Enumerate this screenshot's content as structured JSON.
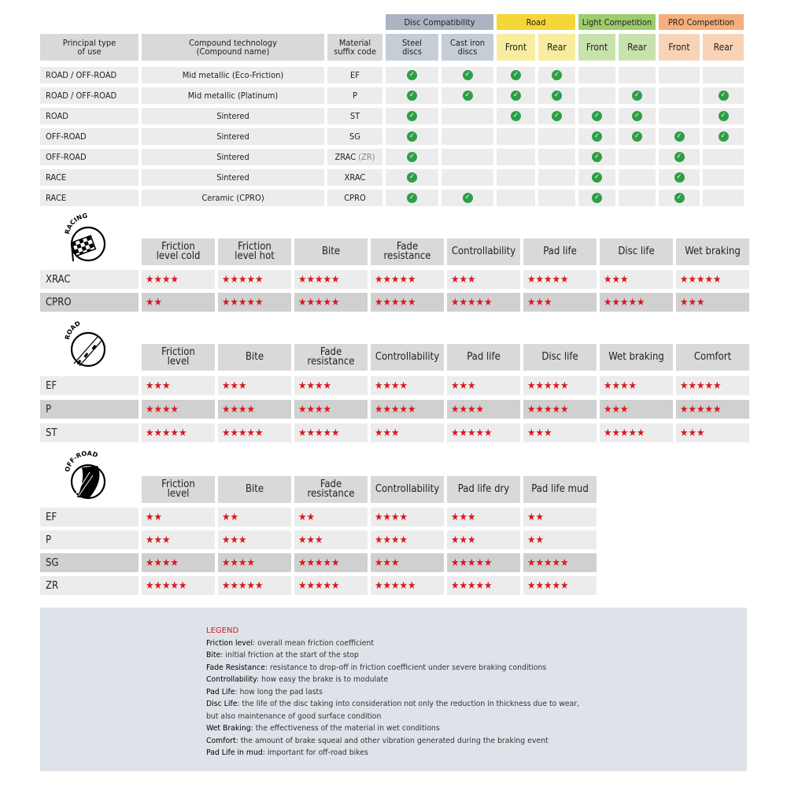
{
  "compat": {
    "groups": [
      {
        "label": "Disc Compatibility",
        "color": "#a9b5c1",
        "sub_color": "#c5cdd5",
        "span": 2
      },
      {
        "label": "Road",
        "color": "#f6d637",
        "sub_color": "#f8ec9f",
        "span": 2
      },
      {
        "label": "Light Competition",
        "color": "#9dcd6c",
        "sub_color": "#c8e2ae",
        "span": 2
      },
      {
        "label": "PRO Competition",
        "color": "#f5ae7c",
        "sub_color": "#f9d3b6",
        "span": 2
      }
    ],
    "headers": [
      "Principal type\nof use",
      "Compound technology\n(Compound name)",
      "Material\nsuffix code",
      "Steel\ndiscs",
      "Cast iron\ndiscs",
      "Front",
      "Rear",
      "Front",
      "Rear",
      "Front",
      "Rear"
    ],
    "rows": [
      {
        "use": "ROAD / OFF-ROAD",
        "compound": "Mid metallic (Eco-Friction)",
        "code": "EF",
        "code_note": "",
        "checks": [
          1,
          1,
          1,
          1,
          0,
          0,
          0,
          0
        ]
      },
      {
        "use": "ROAD / OFF-ROAD",
        "compound": "Mid metallic (Platinum)",
        "code": "P",
        "code_note": "",
        "checks": [
          1,
          1,
          1,
          1,
          0,
          1,
          0,
          1
        ]
      },
      {
        "use": "ROAD",
        "compound": "Sintered",
        "code": "ST",
        "code_note": "",
        "checks": [
          1,
          0,
          1,
          1,
          1,
          1,
          0,
          1
        ]
      },
      {
        "use": "OFF-ROAD",
        "compound": "Sintered",
        "code": "SG",
        "code_note": "",
        "checks": [
          1,
          0,
          0,
          0,
          1,
          1,
          1,
          1
        ]
      },
      {
        "use": "OFF-ROAD",
        "compound": "Sintered",
        "code": "ZRAC",
        "code_note": "(ZR)",
        "checks": [
          1,
          0,
          0,
          0,
          1,
          0,
          1,
          0
        ]
      },
      {
        "use": "RACE",
        "compound": "Sintered",
        "code": "XRAC",
        "code_note": "",
        "checks": [
          1,
          0,
          0,
          0,
          1,
          0,
          1,
          0
        ]
      },
      {
        "use": "RACE",
        "compound": "Ceramic (CPRO)",
        "code": "CPRO",
        "code_note": "",
        "checks": [
          1,
          1,
          0,
          0,
          1,
          0,
          1,
          0
        ]
      }
    ],
    "check_color": "#2e9e46"
  },
  "ratings": [
    {
      "icon": "racing-flag-icon",
      "icon_label": "RACING",
      "headers": [
        "Friction\nlevel cold",
        "Friction\nlevel hot",
        "Bite",
        "Fade\nresistance",
        "Controllability",
        "Pad life",
        "Disc life",
        "Wet braking"
      ],
      "rows": [
        {
          "code": "XRAC",
          "highlight": false,
          "stars": [
            4,
            5,
            5,
            5,
            3,
            5,
            3,
            5
          ]
        },
        {
          "code": "CPRO",
          "highlight": true,
          "stars": [
            2,
            5,
            5,
            5,
            5,
            3,
            5,
            3
          ]
        }
      ]
    },
    {
      "icon": "road-icon",
      "icon_label": "ROAD",
      "headers": [
        "Friction\nlevel",
        "Bite",
        "Fade\nresistance",
        "Controllability",
        "Pad life",
        "Disc life",
        "Wet braking",
        "Comfort"
      ],
      "rows": [
        {
          "code": "EF",
          "highlight": false,
          "stars": [
            3,
            3,
            4,
            4,
            3,
            5,
            4,
            5
          ]
        },
        {
          "code": "P",
          "highlight": true,
          "stars": [
            4,
            4,
            4,
            5,
            4,
            5,
            3,
            5
          ]
        },
        {
          "code": "ST",
          "highlight": false,
          "stars": [
            5,
            5,
            5,
            3,
            5,
            3,
            5,
            3
          ]
        }
      ]
    },
    {
      "icon": "off-road-icon",
      "icon_label": "OFF-ROAD",
      "headers": [
        "Friction\nlevel",
        "Bite",
        "Fade\nresistance",
        "Controllability",
        "Pad life dry",
        "Pad life mud"
      ],
      "rows": [
        {
          "code": "EF",
          "highlight": false,
          "stars": [
            2,
            2,
            2,
            4,
            3,
            2
          ]
        },
        {
          "code": "P",
          "highlight": false,
          "stars": [
            3,
            3,
            3,
            4,
            3,
            2
          ]
        },
        {
          "code": "SG",
          "highlight": true,
          "stars": [
            4,
            4,
            5,
            3,
            5,
            5
          ]
        },
        {
          "code": "ZR",
          "highlight": false,
          "stars": [
            5,
            5,
            5,
            5,
            5,
            5
          ]
        }
      ]
    }
  ],
  "star_color": "#d81921",
  "legend": {
    "title": "LEGEND",
    "items": [
      {
        "term": "Friction level",
        "text": ": overall mean friction coefficient"
      },
      {
        "term": "Bite",
        "text": ": initial friction at the start of the stop"
      },
      {
        "term": "Fade Resistance",
        "text": ": resistance to drop-off in friction coefficient under severe braking conditions"
      },
      {
        "term": "Controllability",
        "text": ": how easy the brake is to modulate"
      },
      {
        "term": "Pad Life",
        "text": ": how long the pad lasts"
      },
      {
        "term": "Disc Life",
        "text": ": the life of the disc taking into consideration not only the reduction in thickness due to wear,"
      },
      {
        "term": "",
        "text": "but also maintenance of good surface condition"
      },
      {
        "term": "Wet Braking",
        "text": ": the effectiveness of the material in wet conditions"
      },
      {
        "term": "Comfort",
        "text": ": the amount of brake squeal and other vibration generated during the braking event"
      },
      {
        "term": "Pad Life in mud",
        "text": ": important for off-road bikes"
      }
    ]
  }
}
